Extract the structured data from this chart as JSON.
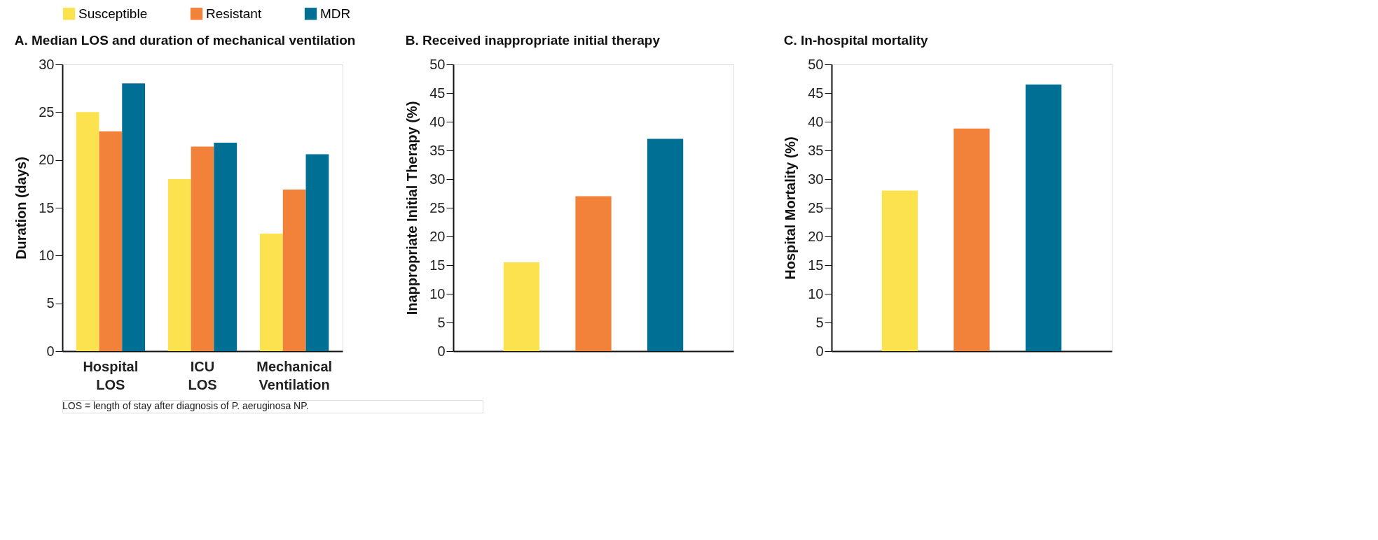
{
  "chart_data": [
    {
      "type": "bar",
      "title": "A. Median LOS and duration of mechanical ventilation",
      "ylabel": "Duration (days)",
      "categories": [
        "Hospital LOS",
        "ICU LOS",
        "Mechanical Ventilation"
      ],
      "series": [
        {
          "name": "Susceptible",
          "color": "#fde24f",
          "values": [
            25.0,
            18.0,
            12.3
          ]
        },
        {
          "name": "Resistant",
          "color": "#f2823a",
          "values": [
            23.0,
            21.4,
            16.9
          ]
        },
        {
          "name": "MDR",
          "color": "#006f94",
          "values": [
            28.0,
            21.8,
            20.6
          ]
        }
      ],
      "ylim": [
        0,
        30
      ],
      "yticks": [
        0,
        5,
        10,
        15,
        20,
        25,
        30
      ],
      "legend": "top",
      "annotations": [
        "LOS = length of stay after diagnosis of P. aeruginosa NP."
      ]
    },
    {
      "type": "bar",
      "title": "B. Received inappropriate initial therapy",
      "ylabel": "Inappropriate Initial Therapy (%)",
      "categories": [
        null
      ],
      "series": [
        {
          "name": "Susceptible",
          "color": "#fde24f",
          "values": [
            15.5
          ]
        },
        {
          "name": "Resistant",
          "color": "#f2823a",
          "values": [
            27.0
          ]
        },
        {
          "name": "MDR",
          "color": "#006f94",
          "values": [
            37.0
          ]
        }
      ],
      "ylim": [
        0,
        50
      ],
      "yticks": [
        0,
        5,
        10,
        15,
        20,
        25,
        30,
        35,
        40,
        45,
        50
      ],
      "tick_labels": "y"
    },
    {
      "type": "bar",
      "title": "C. In-hospital mortality",
      "ylabel": "Hospital Mortality (%)",
      "categories": [
        null
      ],
      "series": [
        {
          "name": "Susceptible",
          "color": "#fde24f",
          "values": [
            28.0
          ]
        },
        {
          "name": "Resistant",
          "color": "#f2823a",
          "values": [
            38.8
          ]
        },
        {
          "name": "MDR",
          "color": "#006f94",
          "values": [
            46.5
          ]
        }
      ],
      "ylim": [
        0,
        50
      ],
      "yticks": [
        0,
        5,
        10,
        15,
        20,
        25,
        30,
        35,
        40,
        45,
        50
      ],
      "tick_labels": "y"
    }
  ]
}
